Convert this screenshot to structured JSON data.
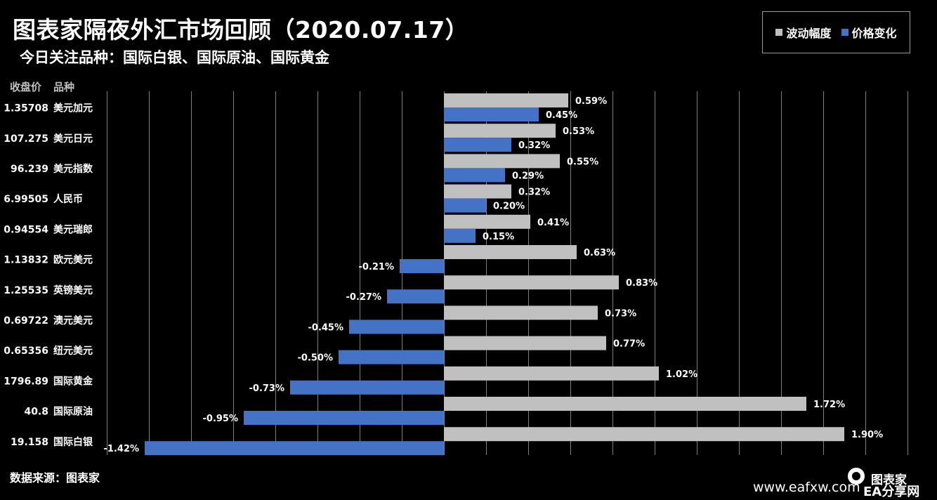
{
  "title": "图表家隔夜外汇市场回顾（2020.07.17）",
  "subtitle": "今日关注品种：国际白银、国际原油、国际黄金",
  "headers": {
    "close": "收盘价",
    "instrument": "品种"
  },
  "footer": "数据来源：图表家",
  "watermark": {
    "url": "www.eafxw.com",
    "brand": "图表家",
    "brand_sub": "EA分享网"
  },
  "legend": [
    {
      "label": "波动幅度",
      "color": "#c0c0c0"
    },
    {
      "label": "价格变化",
      "color": "#4472c4"
    }
  ],
  "chart_data": {
    "type": "bar",
    "orientation": "horizontal",
    "xlim": [
      -1.6,
      2.2
    ],
    "grid": true,
    "categories": [
      "美元加元",
      "美元日元",
      "美元指数",
      "人民币",
      "美元瑞郎",
      "欧元美元",
      "英镑美元",
      "澳元美元",
      "纽元美元",
      "国际黄金",
      "国际原油",
      "国际白银"
    ],
    "close_prices": [
      "1.35708",
      "107.275",
      "96.239",
      "6.99505",
      "0.94554",
      "1.13832",
      "1.25535",
      "0.69722",
      "0.65356",
      "1796.89",
      "40.8",
      "19.158"
    ],
    "series": [
      {
        "name": "波动幅度",
        "color": "#c0c0c0",
        "values": [
          0.59,
          0.53,
          0.55,
          0.32,
          0.41,
          0.63,
          0.83,
          0.73,
          0.77,
          1.02,
          1.72,
          1.9
        ],
        "labels": [
          "0.59%",
          "0.53%",
          "0.55%",
          "0.32%",
          "0.41%",
          "0.63%",
          "0.83%",
          "0.73%",
          "0.77%",
          "1.02%",
          "1.72%",
          "1.90%"
        ]
      },
      {
        "name": "价格变化",
        "color": "#4472c4",
        "values": [
          0.45,
          0.32,
          0.29,
          0.2,
          0.15,
          -0.21,
          -0.27,
          -0.45,
          -0.5,
          -0.73,
          -0.95,
          -1.42
        ],
        "labels": [
          "0.45%",
          "0.32%",
          "0.29%",
          "0.20%",
          "0.15%",
          "-0.21%",
          "-0.27%",
          "-0.45%",
          "-0.50%",
          "-0.73%",
          "-0.95%",
          "-1.42%"
        ]
      }
    ]
  }
}
